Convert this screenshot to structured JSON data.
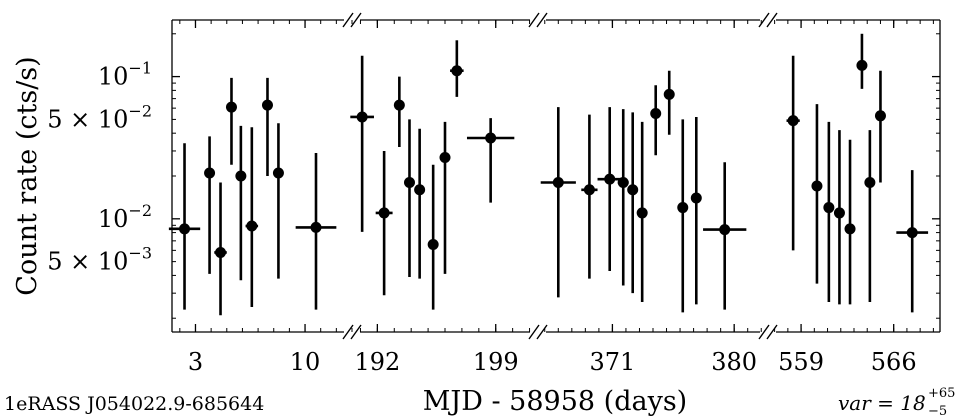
{
  "chart_data": {
    "type": "scatter",
    "title": "",
    "source_label": "1eRASS J054022.9-685644",
    "variability_label": "var = 18",
    "variability_sup": "+65",
    "variability_sub": "−5",
    "xlabel": "MJD - 58958 (days)",
    "ylabel": "Count rate (cts/s)",
    "yscale": "log",
    "ylim": [
      0.0016,
      0.25
    ],
    "yticks": [
      {
        "value": 0.1,
        "base": "10",
        "exp": "−1",
        "coef": ""
      },
      {
        "value": 0.05,
        "base": "10",
        "exp": "−2",
        "coef": "5 × "
      },
      {
        "value": 0.01,
        "base": "10",
        "exp": "−2",
        "coef": ""
      },
      {
        "value": 0.005,
        "base": "10",
        "exp": "−3",
        "coef": ""
      }
    ],
    "panels": [
      {
        "xlim": [
          1.5,
          13.0
        ],
        "xticks": [
          {
            "value": 3,
            "label": "3"
          },
          {
            "value": 10,
            "label": "10"
          }
        ],
        "points": [
          {
            "x": 2.3,
            "y": 0.0085,
            "xerr": 1.0,
            "ylo": 0.0023,
            "yhi": 0.034
          },
          {
            "x": 3.9,
            "y": 0.021,
            "xerr": 0.2,
            "ylo": 0.0041,
            "yhi": 0.038
          },
          {
            "x": 4.6,
            "y": 0.0058,
            "xerr": 0.4,
            "ylo": 0.0021,
            "yhi": 0.018
          },
          {
            "x": 5.3,
            "y": 0.061,
            "xerr": 0.1,
            "ylo": 0.024,
            "yhi": 0.098
          },
          {
            "x": 5.9,
            "y": 0.02,
            "xerr": 0.1,
            "ylo": 0.0037,
            "yhi": 0.045
          },
          {
            "x": 6.6,
            "y": 0.0089,
            "xerr": 0.4,
            "ylo": 0.0024,
            "yhi": 0.044
          },
          {
            "x": 7.6,
            "y": 0.063,
            "xerr": 0.1,
            "ylo": 0.02,
            "yhi": 0.098
          },
          {
            "x": 8.3,
            "y": 0.021,
            "xerr": 0.1,
            "ylo": 0.0038,
            "yhi": 0.047
          },
          {
            "x": 10.7,
            "y": 0.0087,
            "xerr": 1.3,
            "ylo": 0.0023,
            "yhi": 0.029
          }
        ]
      },
      {
        "xlim": [
          190.5,
          201.5
        ],
        "xticks": [
          {
            "value": 192,
            "label": "192"
          },
          {
            "value": 199,
            "label": "199"
          }
        ],
        "points": [
          {
            "x": 191.1,
            "y": 0.052,
            "xerr": 0.7,
            "ylo": 0.0081,
            "yhi": 0.14
          },
          {
            "x": 192.4,
            "y": 0.011,
            "xerr": 0.5,
            "ylo": 0.0029,
            "yhi": 0.03
          },
          {
            "x": 193.3,
            "y": 0.063,
            "xerr": 0.1,
            "ylo": 0.032,
            "yhi": 0.1
          },
          {
            "x": 193.9,
            "y": 0.018,
            "xerr": 0.1,
            "ylo": 0.0039,
            "yhi": 0.05
          },
          {
            "x": 194.5,
            "y": 0.016,
            "xerr": 0.1,
            "ylo": 0.0038,
            "yhi": 0.043
          },
          {
            "x": 195.3,
            "y": 0.0066,
            "xerr": 0.3,
            "ylo": 0.0023,
            "yhi": 0.024
          },
          {
            "x": 196.0,
            "y": 0.027,
            "xerr": 0.1,
            "ylo": 0.0041,
            "yhi": 0.048
          },
          {
            "x": 196.7,
            "y": 0.11,
            "xerr": 0.4,
            "ylo": 0.072,
            "yhi": 0.18
          },
          {
            "x": 198.7,
            "y": 0.037,
            "xerr": 1.4,
            "ylo": 0.013,
            "yhi": 0.051
          }
        ]
      },
      {
        "xlim": [
          365.5,
          382.5
        ],
        "xticks": [
          {
            "value": 371,
            "label": "371"
          },
          {
            "value": 380,
            "label": "380"
          }
        ],
        "points": [
          {
            "x": 367.0,
            "y": 0.018,
            "xerr": 1.3,
            "ylo": 0.0028,
            "yhi": 0.061
          },
          {
            "x": 369.3,
            "y": 0.016,
            "xerr": 0.6,
            "ylo": 0.0038,
            "yhi": 0.054
          },
          {
            "x": 370.8,
            "y": 0.019,
            "xerr": 0.9,
            "ylo": 0.0043,
            "yhi": 0.061
          },
          {
            "x": 371.8,
            "y": 0.018,
            "xerr": 0.4,
            "ylo": 0.0034,
            "yhi": 0.059
          },
          {
            "x": 372.5,
            "y": 0.016,
            "xerr": 0.1,
            "ylo": 0.003,
            "yhi": 0.056
          },
          {
            "x": 373.2,
            "y": 0.011,
            "xerr": 0.1,
            "ylo": 0.0026,
            "yhi": 0.048
          },
          {
            "x": 374.2,
            "y": 0.055,
            "xerr": 0.1,
            "ylo": 0.028,
            "yhi": 0.087
          },
          {
            "x": 375.2,
            "y": 0.075,
            "xerr": 0.1,
            "ylo": 0.039,
            "yhi": 0.11
          },
          {
            "x": 376.2,
            "y": 0.012,
            "xerr": 0.2,
            "ylo": 0.0022,
            "yhi": 0.05
          },
          {
            "x": 377.2,
            "y": 0.014,
            "xerr": 0.1,
            "ylo": 0.0025,
            "yhi": 0.052
          },
          {
            "x": 379.3,
            "y": 0.0084,
            "xerr": 1.6,
            "ylo": 0.0023,
            "yhi": 0.025
          }
        ]
      },
      {
        "xlim": [
          556.5,
          569.5
        ],
        "xticks": [
          {
            "value": 559,
            "label": "559"
          },
          {
            "value": 566,
            "label": "566"
          }
        ],
        "points": [
          {
            "x": 558.4,
            "y": 0.049,
            "xerr": 0.5,
            "ylo": 0.006,
            "yhi": 0.14
          },
          {
            "x": 560.2,
            "y": 0.017,
            "xerr": 0.2,
            "ylo": 0.0035,
            "yhi": 0.064
          },
          {
            "x": 561.1,
            "y": 0.012,
            "xerr": 0.2,
            "ylo": 0.0026,
            "yhi": 0.048
          },
          {
            "x": 561.9,
            "y": 0.011,
            "xerr": 0.1,
            "ylo": 0.0025,
            "yhi": 0.042
          },
          {
            "x": 562.7,
            "y": 0.0085,
            "xerr": 0.3,
            "ylo": 0.0025,
            "yhi": 0.036
          },
          {
            "x": 563.6,
            "y": 0.12,
            "xerr": 0.1,
            "ylo": 0.082,
            "yhi": 0.2
          },
          {
            "x": 564.2,
            "y": 0.018,
            "xerr": 0.1,
            "ylo": 0.0026,
            "yhi": 0.042
          },
          {
            "x": 565.0,
            "y": 0.053,
            "xerr": 0.2,
            "ylo": 0.018,
            "yhi": 0.11
          },
          {
            "x": 567.4,
            "y": 0.008,
            "xerr": 1.2,
            "ylo": 0.0022,
            "yhi": 0.022
          }
        ]
      }
    ]
  }
}
